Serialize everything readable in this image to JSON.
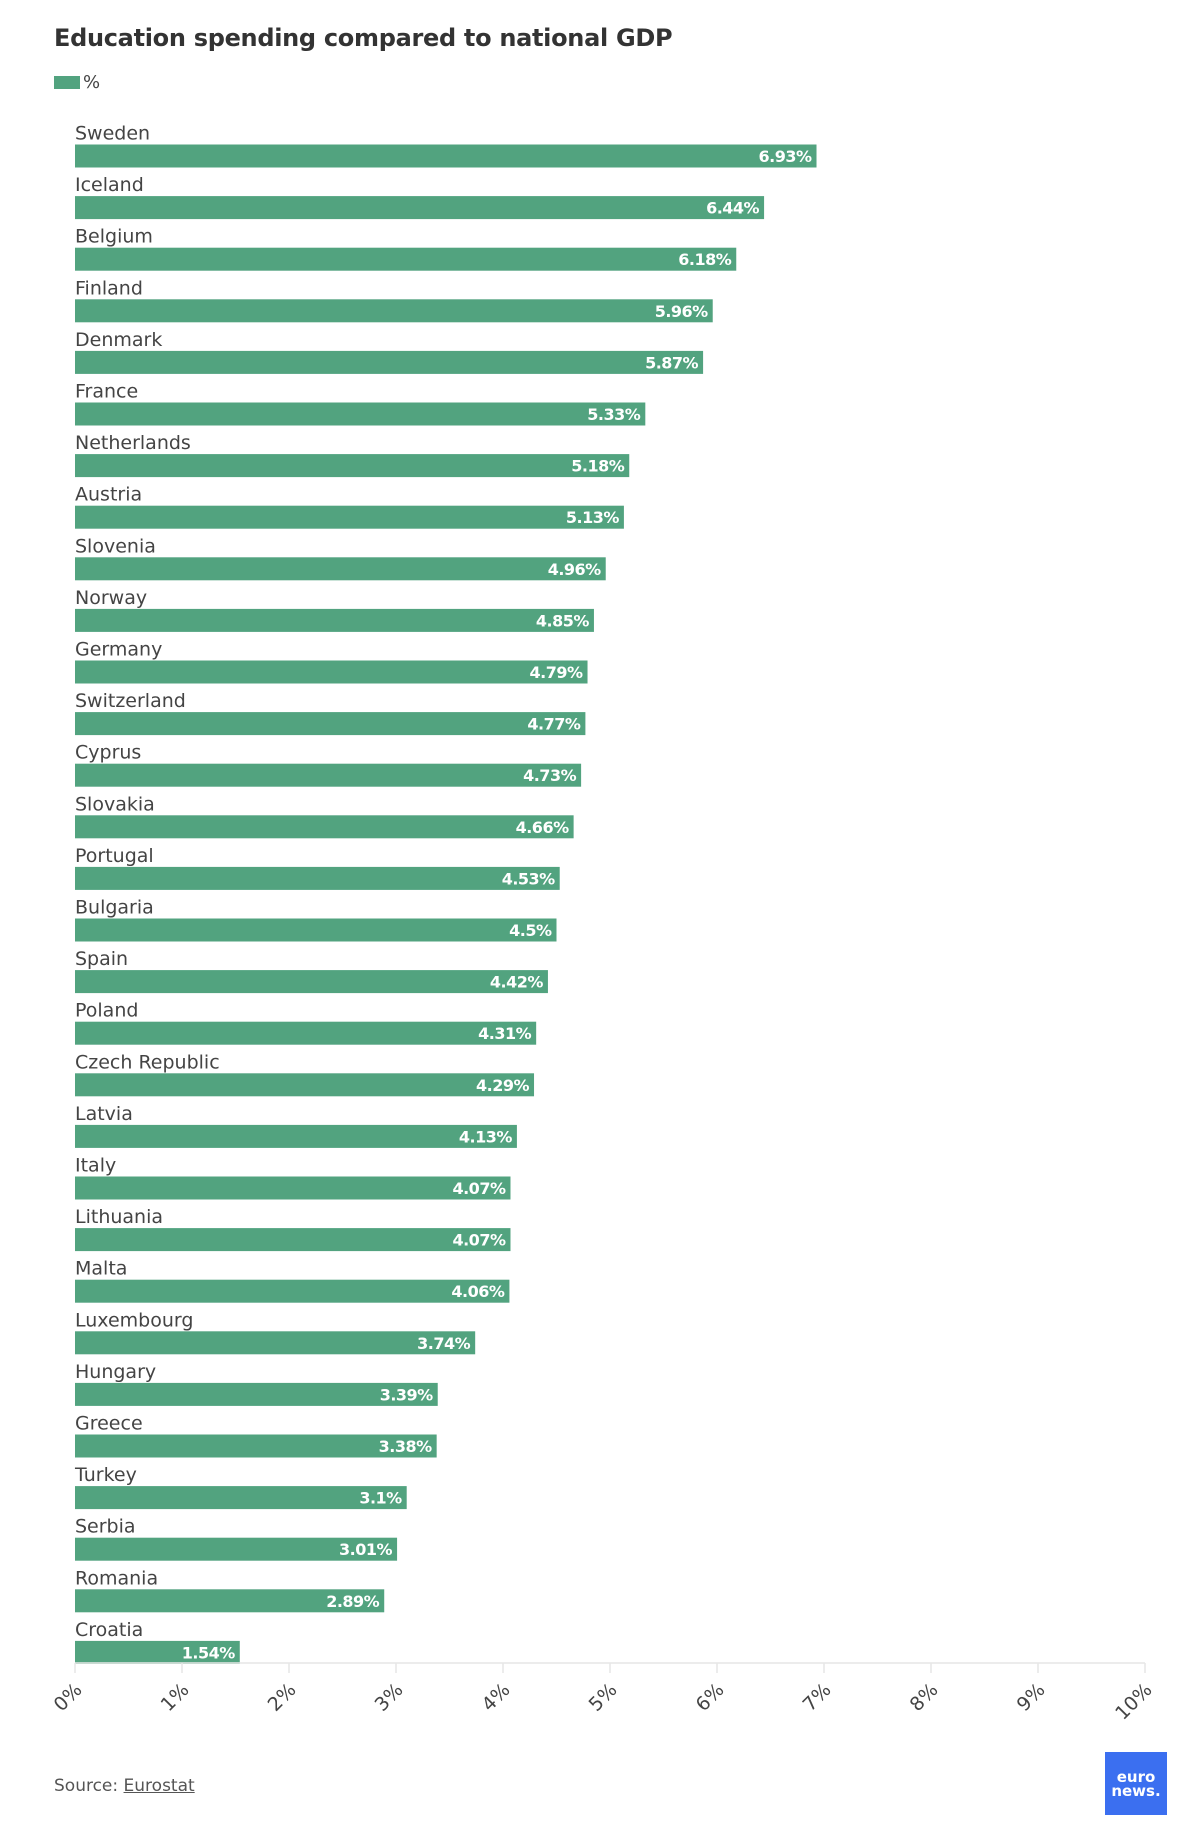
{
  "chart_data": {
    "type": "bar",
    "orientation": "horizontal",
    "title": "Education spending compared to national GDP",
    "legend": [
      {
        "name": "%",
        "color": "#52a37f"
      }
    ],
    "legend_position": "top-left",
    "categories": [
      "Sweden",
      "Iceland",
      "Belgium",
      "Finland",
      "Denmark",
      "France",
      "Netherlands",
      "Austria",
      "Slovenia",
      "Norway",
      "Germany",
      "Switzerland",
      "Cyprus",
      "Slovakia",
      "Portugal",
      "Bulgaria",
      "Spain",
      "Poland",
      "Czech Republic",
      "Latvia",
      "Italy",
      "Lithuania",
      "Malta",
      "Luxembourg",
      "Hungary",
      "Greece",
      "Turkey",
      "Serbia",
      "Romania",
      "Croatia"
    ],
    "values": [
      6.93,
      6.44,
      6.18,
      5.96,
      5.87,
      5.33,
      5.18,
      5.13,
      4.96,
      4.85,
      4.79,
      4.77,
      4.73,
      4.66,
      4.53,
      4.5,
      4.42,
      4.31,
      4.29,
      4.13,
      4.07,
      4.07,
      4.06,
      3.74,
      3.39,
      3.38,
      3.1,
      3.01,
      2.89,
      1.54
    ],
    "data_labels": [
      "6.93%",
      "6.44%",
      "6.18%",
      "5.96%",
      "5.87%",
      "5.33%",
      "5.18%",
      "5.13%",
      "4.96%",
      "4.85%",
      "4.79%",
      "4.77%",
      "4.73%",
      "4.66%",
      "4.53%",
      "4.5%",
      "4.42%",
      "4.31%",
      "4.29%",
      "4.13%",
      "4.07%",
      "4.07%",
      "4.06%",
      "3.74%",
      "3.39%",
      "3.38%",
      "3.1%",
      "3.01%",
      "2.89%",
      "1.54%"
    ],
    "xlim": [
      0,
      10
    ],
    "x_ticks": [
      "0%",
      "1%",
      "2%",
      "3%",
      "4%",
      "5%",
      "6%",
      "7%",
      "8%",
      "9%",
      "10%"
    ],
    "grid": false,
    "bar_color": "#52a37f"
  },
  "footer": {
    "source_prefix": "Source:",
    "source_link": "Eurostat",
    "logo_line1": "euro",
    "logo_line2": "news.",
    "logo_color": "#3b6ff0"
  }
}
